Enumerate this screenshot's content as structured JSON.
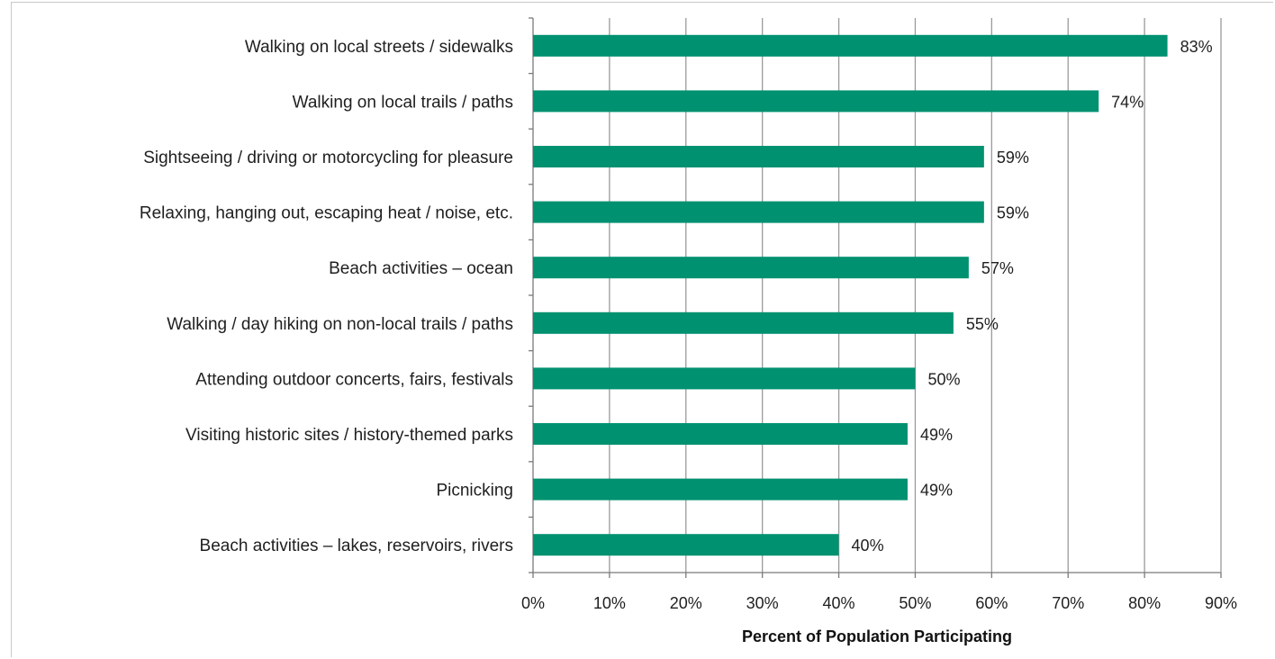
{
  "chart_data": {
    "type": "bar",
    "orientation": "horizontal",
    "title": "",
    "xlabel": "Percent of Population Participating",
    "ylabel": "",
    "xlim": [
      0,
      90
    ],
    "x_ticks": [
      "0%",
      "10%",
      "20%",
      "30%",
      "40%",
      "50%",
      "60%",
      "70%",
      "80%",
      "90%"
    ],
    "grid": "vertical",
    "bar_color": "#009170",
    "categories": [
      "Walking on local streets / sidewalks",
      "Walking on local trails / paths",
      "Sightseeing / driving or motorcycling for pleasure",
      "Relaxing, hanging out, escaping heat / noise, etc.",
      "Beach activities – ocean",
      "Walking / day hiking on non-local trails / paths",
      "Attending outdoor concerts, fairs, festivals",
      "Visiting historic sites / history-themed parks",
      "Picnicking",
      "Beach activities – lakes, reservoirs, rivers"
    ],
    "values": [
      83,
      74,
      59,
      59,
      57,
      55,
      50,
      49,
      49,
      40
    ],
    "value_labels": [
      "83%",
      "74%",
      "59%",
      "59%",
      "57%",
      "55%",
      "50%",
      "49%",
      "49%",
      "40%"
    ]
  }
}
